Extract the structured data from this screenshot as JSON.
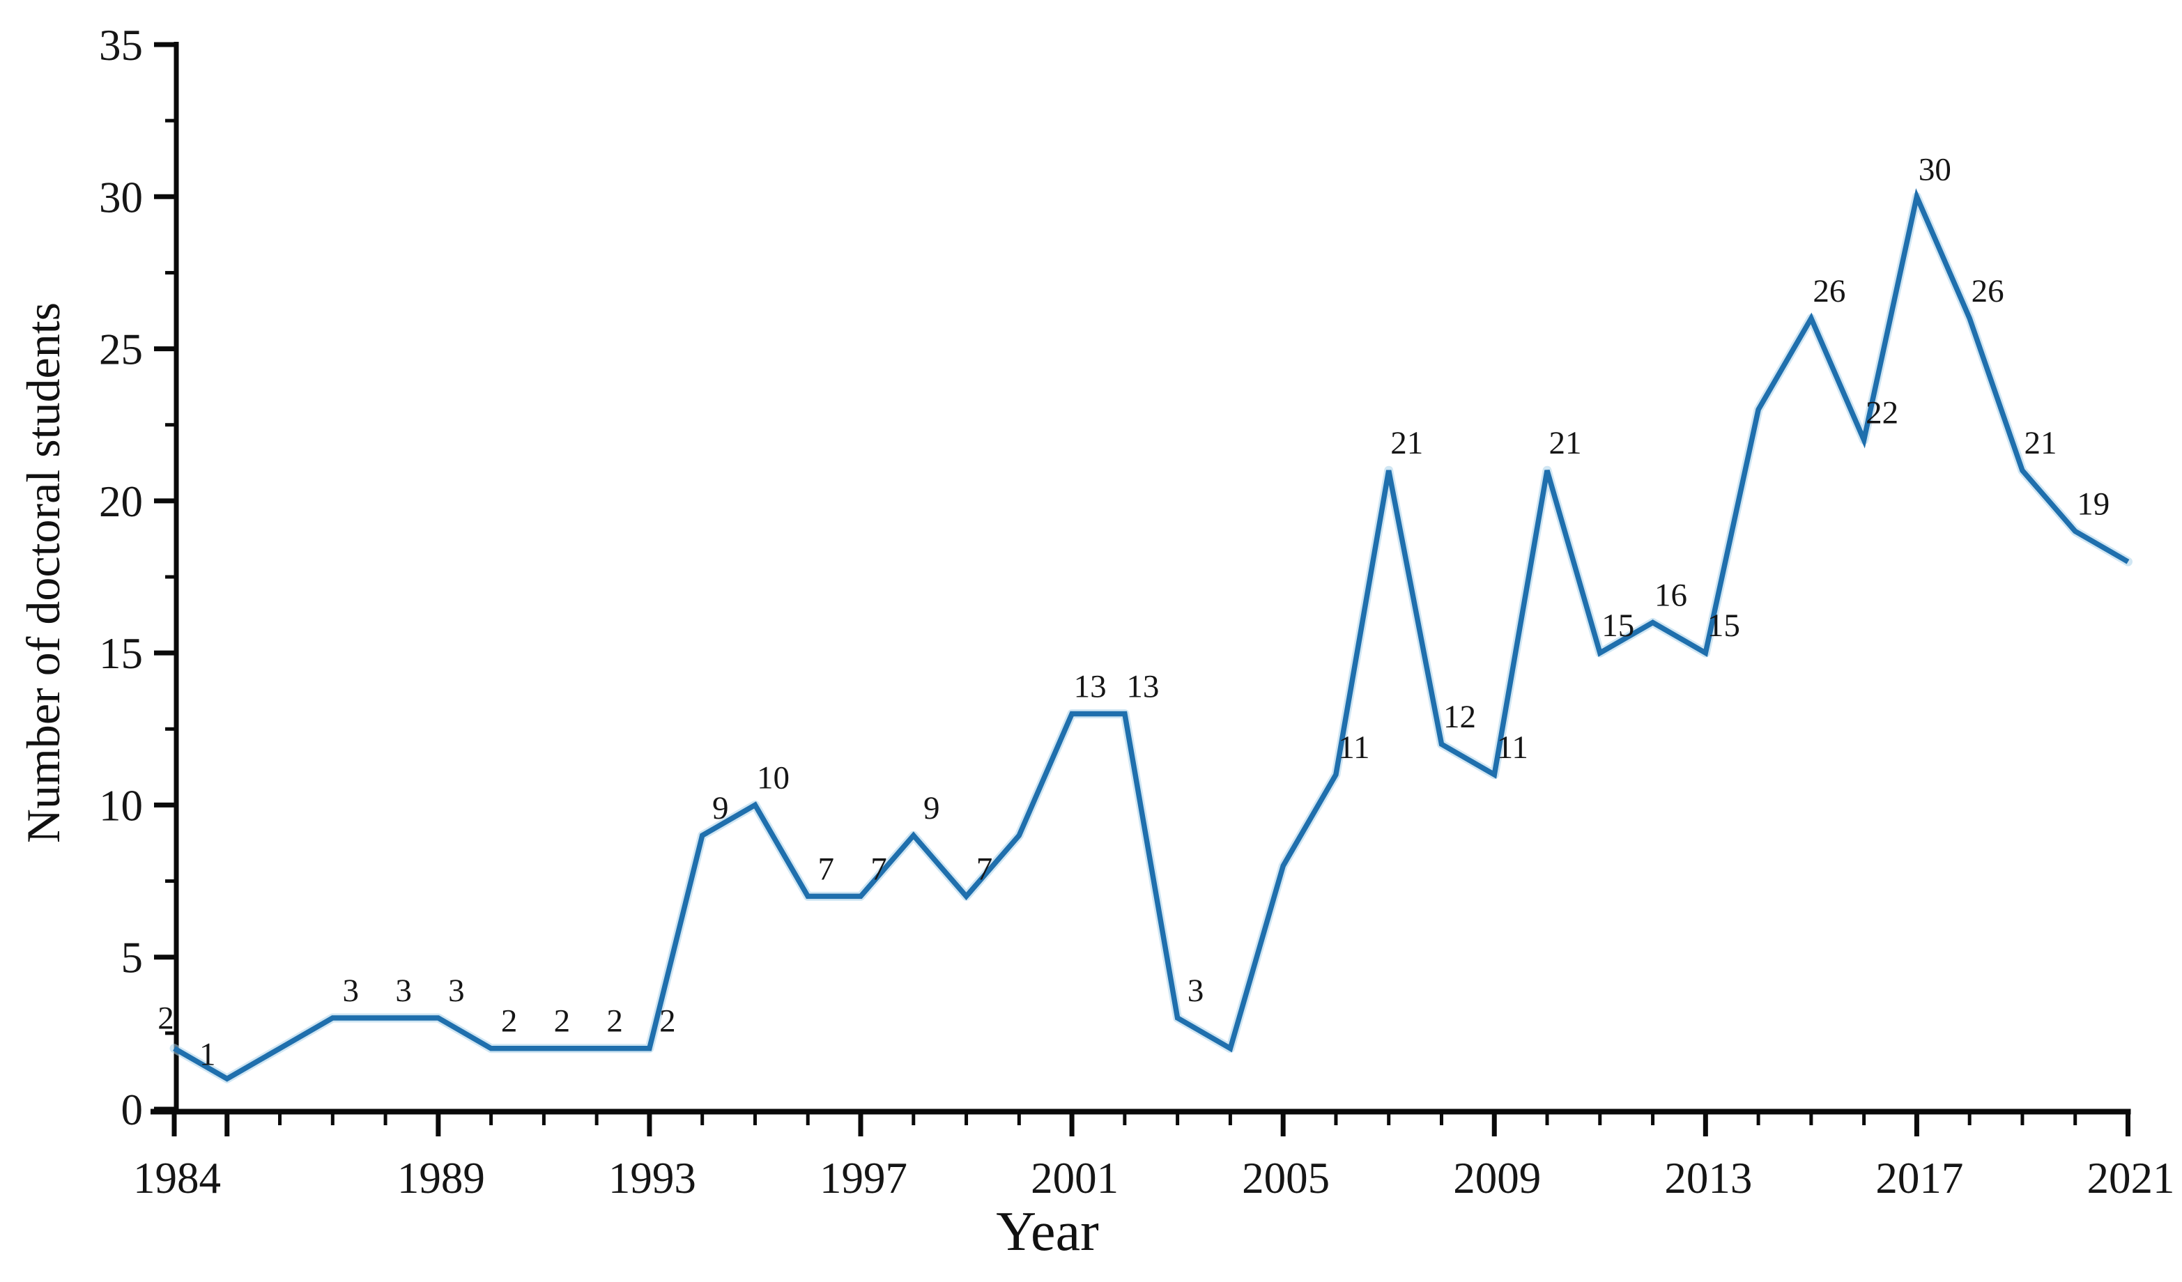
{
  "chart_data": {
    "type": "line",
    "title": "",
    "xlabel": "Year",
    "ylabel": "Number of doctoral students",
    "x_range": [
      1984,
      2021
    ],
    "ylim": [
      0,
      35
    ],
    "y_major_step": 5,
    "y_minor_step": 2.5,
    "y_tick_labels": [
      "0",
      "5",
      "10",
      "15",
      "20",
      "25",
      "30",
      "35"
    ],
    "x_labeled_years": [
      1984,
      1989,
      1993,
      1997,
      2001,
      2005,
      2009,
      2013,
      2017,
      2021
    ],
    "x_long_tick_years": [
      1984,
      1985,
      1989,
      1993,
      1997,
      2001,
      2005,
      2009,
      2013,
      2017,
      2021
    ],
    "grid": "off",
    "legend": "none",
    "line_color": "#1f6fad",
    "halo_color": "#a9d2ea",
    "axis_color": "#0a0a0a",
    "text_color": "#151515",
    "series": [
      {
        "name": "doctoral-students",
        "points": [
          {
            "year": 1984,
            "value": 2,
            "label": "2",
            "label_dx": -12,
            "label_dy": -28
          },
          {
            "year": 1985,
            "value": 1,
            "label": "1",
            "label_dx": -28,
            "label_dy": -20
          },
          {
            "year": 1986,
            "value": 2,
            "label": ""
          },
          {
            "year": 1987,
            "value": 3,
            "label": "3"
          },
          {
            "year": 1988,
            "value": 3,
            "label": "3"
          },
          {
            "year": 1989,
            "value": 3,
            "label": "3"
          },
          {
            "year": 1990,
            "value": 2,
            "label": "2"
          },
          {
            "year": 1991,
            "value": 2,
            "label": "2"
          },
          {
            "year": 1992,
            "value": 2,
            "label": "2"
          },
          {
            "year": 1993,
            "value": 2,
            "label": "2"
          },
          {
            "year": 1994,
            "value": 9,
            "label": "9"
          },
          {
            "year": 1995,
            "value": 10,
            "label": "10"
          },
          {
            "year": 1996,
            "value": 7,
            "label": "7"
          },
          {
            "year": 1997,
            "value": 7,
            "label": "7"
          },
          {
            "year": 1998,
            "value": 9,
            "label": "9"
          },
          {
            "year": 1999,
            "value": 7,
            "label": "7"
          },
          {
            "year": 2000,
            "value": 9,
            "label": ""
          },
          {
            "year": 2001,
            "value": 13,
            "label": "13"
          },
          {
            "year": 2002,
            "value": 13,
            "label": "13"
          },
          {
            "year": 2003,
            "value": 3,
            "label": "3"
          },
          {
            "year": 2004,
            "value": 2,
            "label": ""
          },
          {
            "year": 2005,
            "value": 8,
            "label": ""
          },
          {
            "year": 2006,
            "value": 11,
            "label": "11"
          },
          {
            "year": 2007,
            "value": 21,
            "label": "21"
          },
          {
            "year": 2008,
            "value": 12,
            "label": "12"
          },
          {
            "year": 2009,
            "value": 11,
            "label": "11"
          },
          {
            "year": 2010,
            "value": 21,
            "label": "21"
          },
          {
            "year": 2011,
            "value": 15,
            "label": "15"
          },
          {
            "year": 2012,
            "value": 16,
            "label": "16"
          },
          {
            "year": 2013,
            "value": 15,
            "label": "15"
          },
          {
            "year": 2014,
            "value": 23,
            "label": ""
          },
          {
            "year": 2015,
            "value": 26,
            "label": "26"
          },
          {
            "year": 2016,
            "value": 22,
            "label": "22"
          },
          {
            "year": 2017,
            "value": 30,
            "label": "30"
          },
          {
            "year": 2018,
            "value": 26,
            "label": "26"
          },
          {
            "year": 2019,
            "value": 21,
            "label": "21"
          },
          {
            "year": 2020,
            "value": 19,
            "label": "19"
          },
          {
            "year": 2021,
            "value": 18,
            "label": ""
          }
        ]
      }
    ]
  }
}
